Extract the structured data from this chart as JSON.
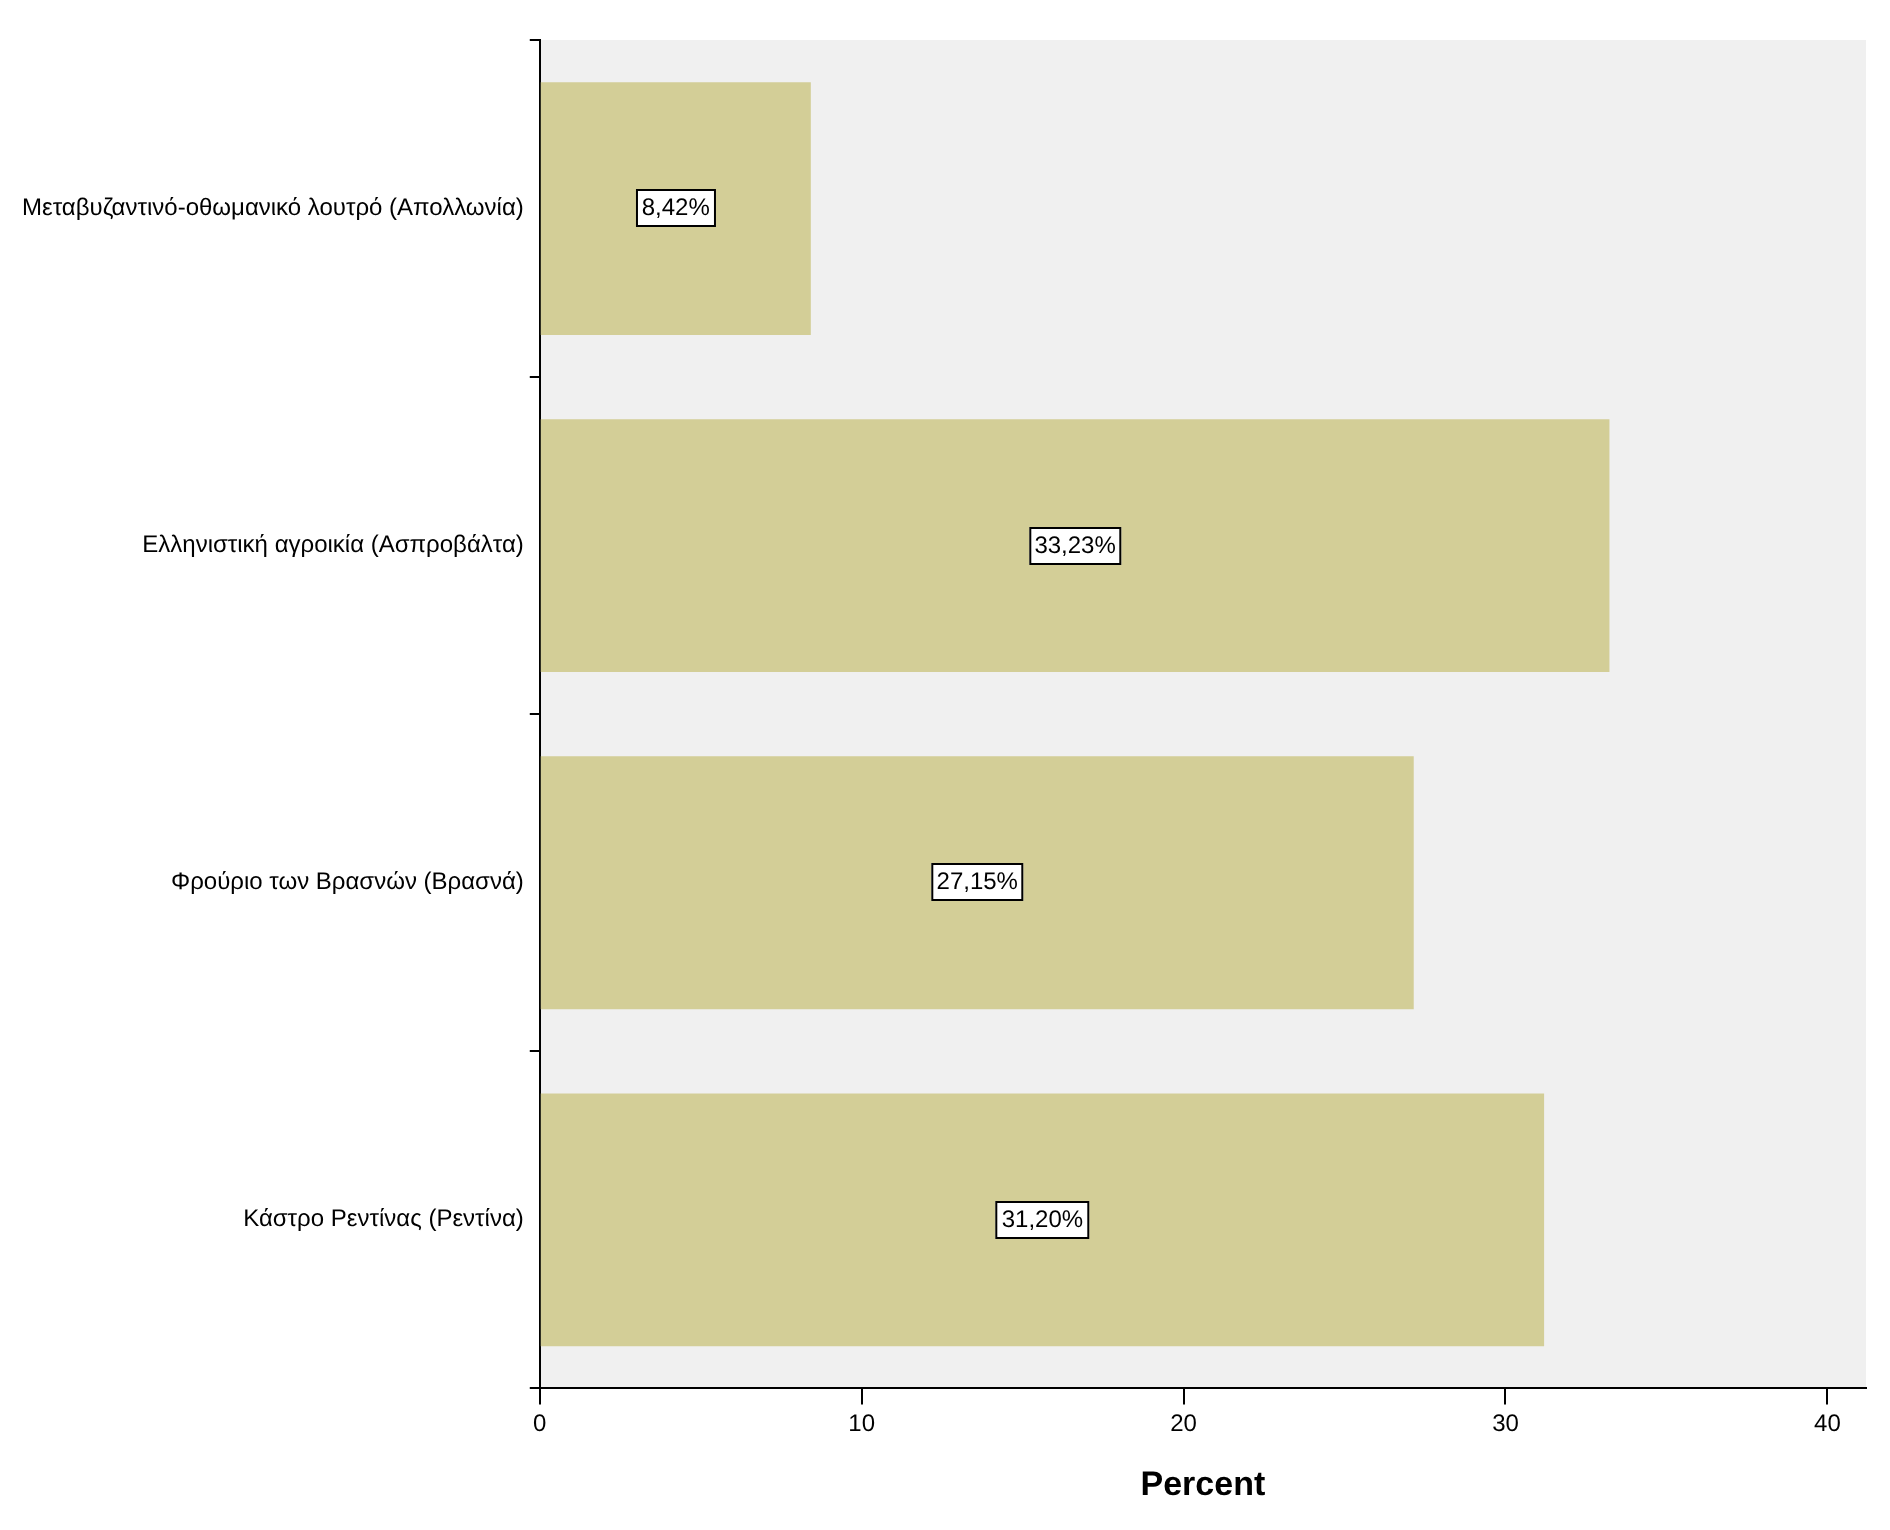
{
  "chart_data": {
    "type": "bar",
    "orientation": "horizontal",
    "xlabel": "Percent",
    "categories": [
      "Μεταβυζαντινό-οθωμανικό λουτρό (Απολλωνία)",
      "Ελληνιστική αγροικία (Ασπροβάλτα)",
      "Φρούριο των Βρασνών (Βρασνά)",
      "Κάστρο Ρεντίνας (Ρεντίνα)"
    ],
    "values": [
      8.42,
      33.23,
      27.15,
      31.2
    ],
    "value_labels": [
      "8,42%",
      "33,23%",
      "27,15%",
      "31,20%"
    ],
    "color": "#d3ce97",
    "xlim": [
      0,
      41.2
    ],
    "xticks": [
      0,
      10,
      20,
      30,
      40
    ],
    "grid": false,
    "legend": false
  }
}
